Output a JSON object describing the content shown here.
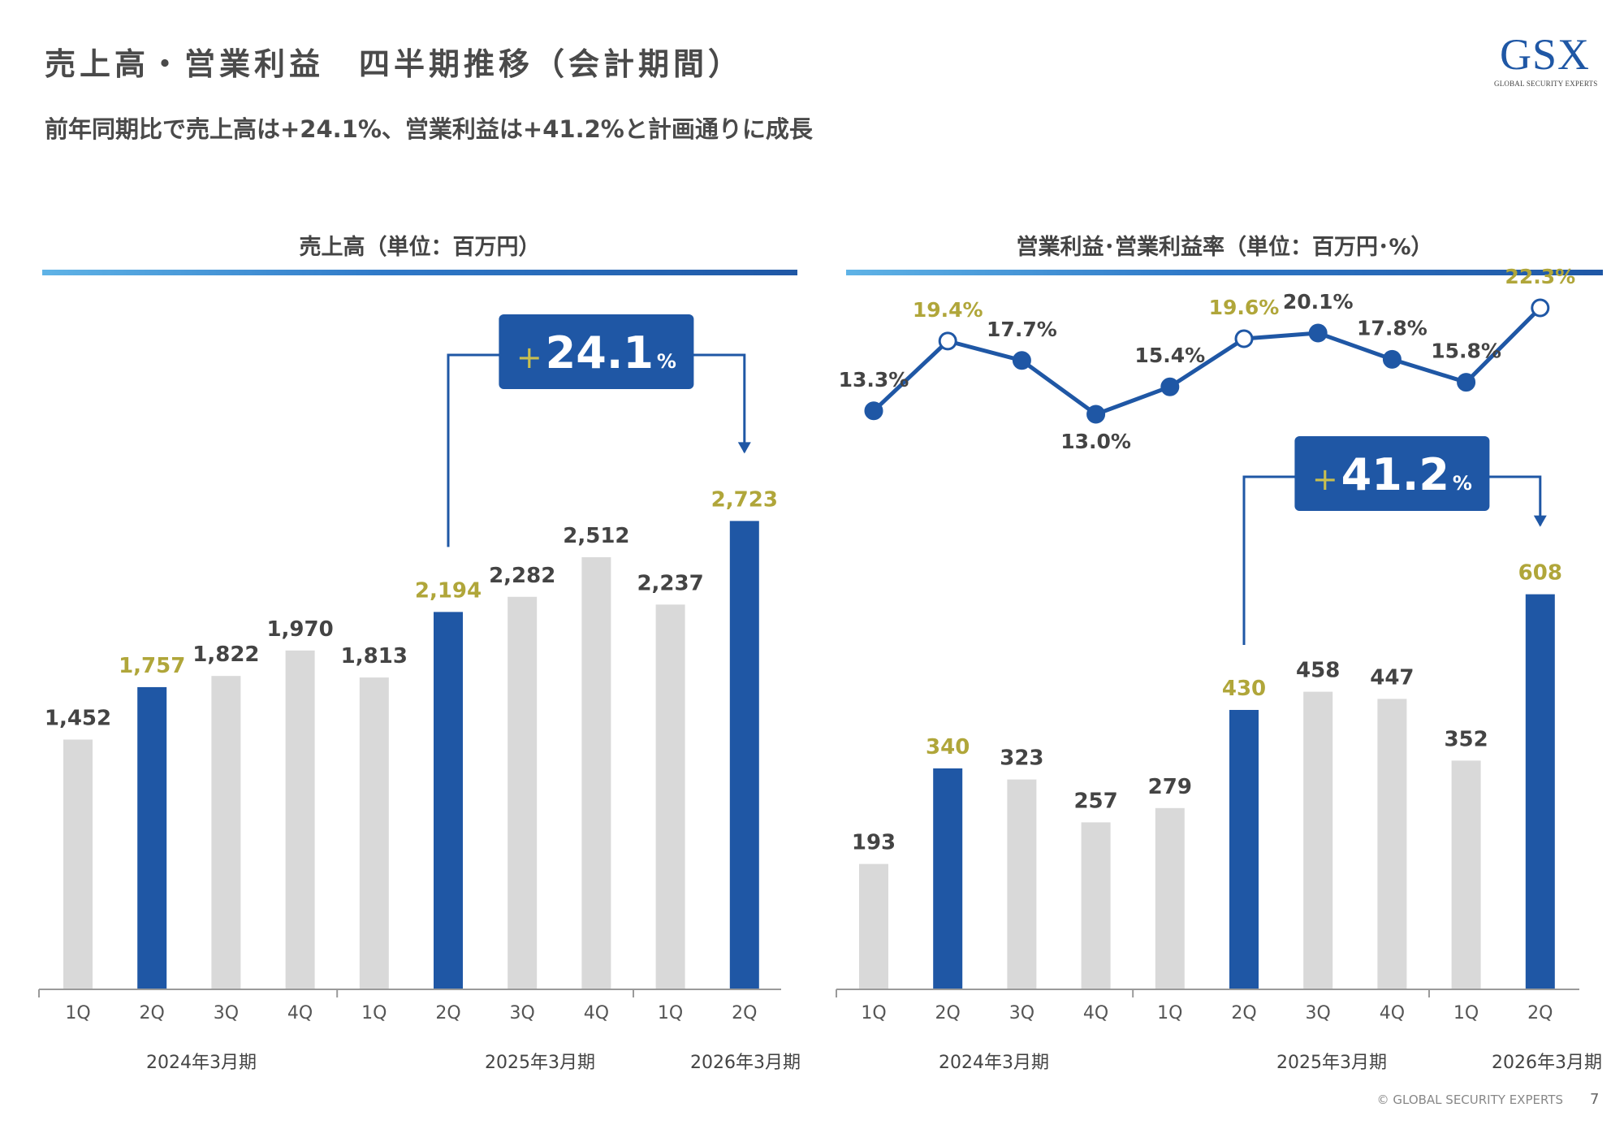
{
  "header": {
    "title": "売上高・営業利益　四半期推移（会計期間）",
    "subtitle": "前年同期比で売上高は+24.1%、営業利益は+41.2%と計画通りに成長"
  },
  "logo": {
    "main": "GSX",
    "sub": "GLOBAL SECURITY EXPERTS"
  },
  "footer": {
    "copyright": "© GLOBAL SECURITY EXPERTS",
    "page": "7"
  },
  "colors": {
    "highlight_bar": "#1f57a5",
    "normal_bar": "#d9d9d9",
    "highlight_label": "#b0a63a",
    "normal_label": "#444444",
    "line": "#1f57a5"
  },
  "chart_data": [
    {
      "type": "bar",
      "title": "売上高（単位：百万円）",
      "categories": [
        "1Q",
        "2Q",
        "3Q",
        "4Q",
        "1Q",
        "2Q",
        "3Q",
        "4Q",
        "1Q",
        "2Q"
      ],
      "groups": [
        {
          "label": "2024年3月期",
          "count": 4
        },
        {
          "label": "2025年3月期",
          "count": 4
        },
        {
          "label": "2026年3月期",
          "count": 2
        }
      ],
      "values": [
        1452,
        1757,
        1822,
        1970,
        1813,
        2194,
        2282,
        2512,
        2237,
        2723
      ],
      "value_labels": [
        "1,452",
        "1,757",
        "1,822",
        "1,970",
        "1,813",
        "2,194",
        "2,282",
        "2,512",
        "2,237",
        "2,723"
      ],
      "highlight": [
        false,
        true,
        false,
        false,
        false,
        true,
        false,
        false,
        false,
        true
      ],
      "ylim": [
        0,
        3400
      ],
      "callout": {
        "plus": "+",
        "number": "24.1",
        "unit": "%",
        "from_index": 5,
        "to_index": 9
      }
    },
    {
      "type": "bar+line",
      "title": "営業利益･営業利益率（単位：百万円･%）",
      "categories": [
        "1Q",
        "2Q",
        "3Q",
        "4Q",
        "1Q",
        "2Q",
        "3Q",
        "4Q",
        "1Q",
        "2Q"
      ],
      "groups": [
        {
          "label": "2024年3月期",
          "count": 4
        },
        {
          "label": "2025年3月期",
          "count": 4
        },
        {
          "label": "2026年3月期",
          "count": 2
        }
      ],
      "values": [
        193,
        340,
        323,
        257,
        279,
        430,
        458,
        447,
        352,
        608
      ],
      "value_labels": [
        "193",
        "340",
        "323",
        "257",
        "279",
        "430",
        "458",
        "447",
        "352",
        "608"
      ],
      "highlight": [
        false,
        true,
        false,
        false,
        false,
        true,
        false,
        false,
        false,
        true
      ],
      "ylim": [
        0,
        700
      ],
      "margin_rate": [
        13.3,
        19.4,
        17.7,
        13.0,
        15.4,
        19.6,
        20.1,
        17.8,
        15.8,
        22.3
      ],
      "margin_labels": [
        "13.3%",
        "19.4%",
        "17.7%",
        "13.0%",
        "15.4%",
        "19.6%",
        "20.1%",
        "17.8%",
        "15.8%",
        "22.3%"
      ],
      "callout": {
        "plus": "+",
        "number": "41.2",
        "unit": "%",
        "from_index": 5,
        "to_index": 9
      }
    }
  ]
}
